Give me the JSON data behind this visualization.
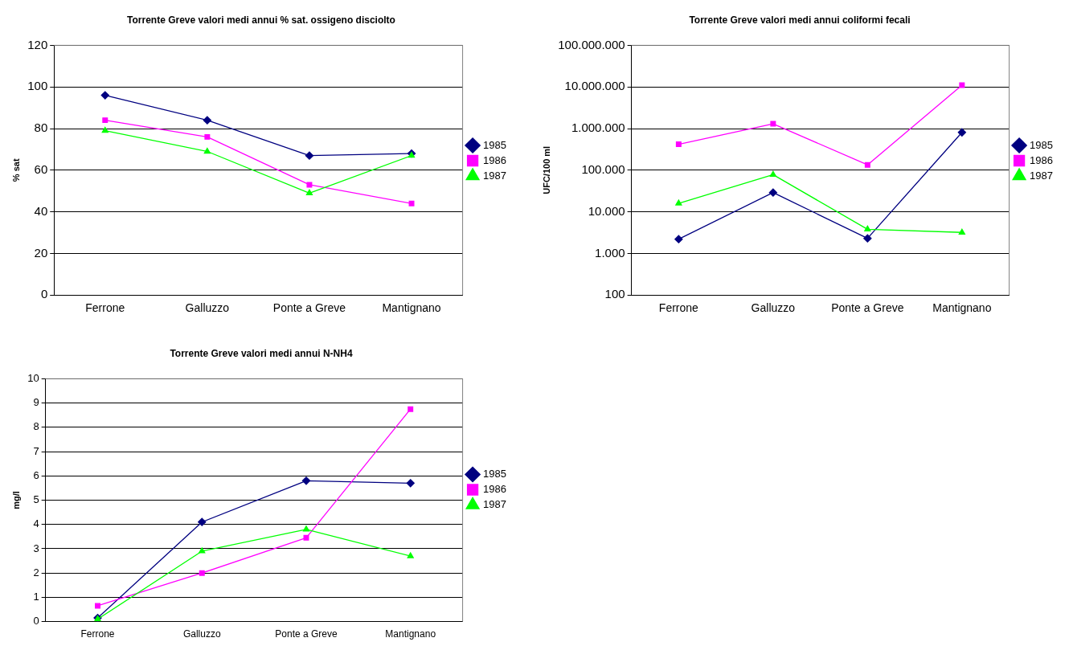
{
  "chart_data": [
    {
      "type": "line",
      "title": "Torrente Greve valori medi annui % sat. ossigeno disciolto",
      "ylabel": "% sat",
      "categories": [
        "Ferrone",
        "Galluzzo",
        "Ponte a Greve",
        "Mantignano"
      ],
      "ylim": [
        0,
        120
      ],
      "yticks": [
        0,
        20,
        40,
        60,
        80,
        100,
        120
      ],
      "grid": "y",
      "legend": "right",
      "line_style": "solid",
      "series": [
        {
          "name": "1985",
          "color": "#000080",
          "marker": "diamond",
          "values": [
            96,
            84,
            67,
            68
          ]
        },
        {
          "name": "1986",
          "color": "#ff00ff",
          "marker": "square",
          "values": [
            84,
            76,
            53,
            44
          ]
        },
        {
          "name": "1987",
          "color": "#00ff00",
          "marker": "triangle",
          "values": [
            79,
            69,
            49,
            67
          ]
        }
      ]
    },
    {
      "type": "line",
      "title": "Torrente Greve valori medi annui coliformi fecali",
      "ylabel": "UFC/100 ml",
      "categories": [
        "Ferrone",
        "Galluzzo",
        "Ponte a Greve",
        "Mantignano"
      ],
      "log": "y",
      "ylim": [
        100,
        100000000
      ],
      "yticks": [
        {
          "value": 100,
          "label": "100"
        },
        {
          "value": 1000,
          "label": "1.000"
        },
        {
          "value": 10000,
          "label": "10.000"
        },
        {
          "value": 100000,
          "label": "100.000"
        },
        {
          "value": 1000000,
          "label": "1.000.000"
        },
        {
          "value": 10000000,
          "label": "10.000.000"
        },
        {
          "value": 100000000,
          "label": "100.000.000"
        }
      ],
      "grid": "y",
      "legend": "right",
      "line_style": "solid",
      "series": [
        {
          "name": "1985",
          "color": "#000080",
          "marker": "diamond",
          "values": [
            2200,
            29000,
            2300,
            810000
          ]
        },
        {
          "name": "1986",
          "color": "#ff00ff",
          "marker": "square",
          "values": [
            420000,
            1300000,
            134000,
            11000000
          ]
        },
        {
          "name": "1987",
          "color": "#00ff00",
          "marker": "triangle",
          "values": [
            16000,
            78000,
            3800,
            3200
          ]
        }
      ]
    },
    {
      "type": "line",
      "title": "Torrente Greve valori medi annui N-NH4",
      "ylabel": "mg/l",
      "categories": [
        "Ferrone",
        "Galluzzo",
        "Ponte a Greve",
        "Mantignano"
      ],
      "ylim": [
        0,
        10
      ],
      "yticks": [
        0,
        1,
        2,
        3,
        4,
        5,
        6,
        7,
        8,
        9,
        10
      ],
      "grid": "y",
      "legend": "right",
      "line_style": "solid",
      "series": [
        {
          "name": "1985",
          "color": "#000080",
          "marker": "diamond",
          "values": [
            0.15,
            4.1,
            5.8,
            5.7
          ]
        },
        {
          "name": "1986",
          "color": "#ff00ff",
          "marker": "square",
          "values": [
            0.65,
            2.0,
            3.45,
            8.75
          ]
        },
        {
          "name": "1987",
          "color": "#00ff00",
          "marker": "triangle",
          "values": [
            0.1,
            2.9,
            3.8,
            2.7
          ]
        }
      ]
    }
  ]
}
